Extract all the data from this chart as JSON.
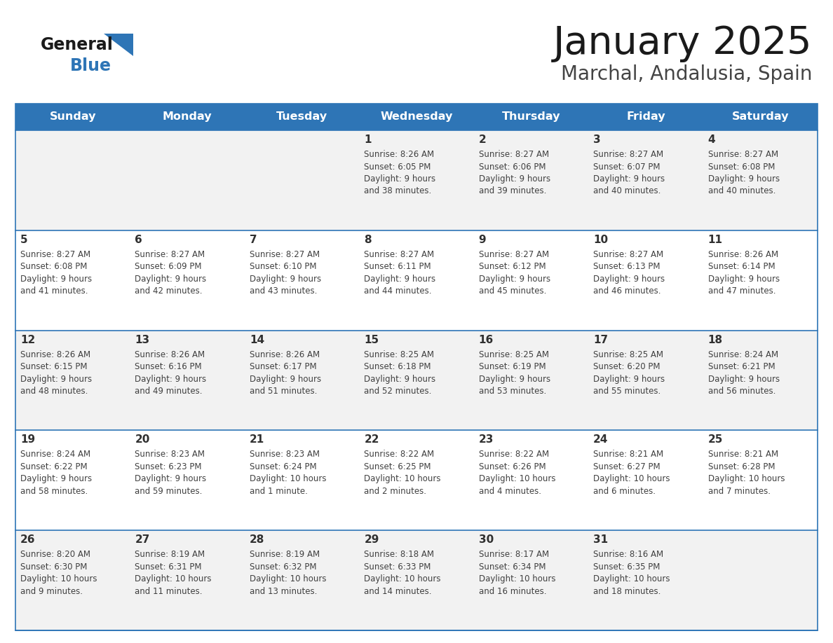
{
  "title": "January 2025",
  "subtitle": "Marchal, Andalusia, Spain",
  "header_color": "#2E75B6",
  "header_text_color": "#FFFFFF",
  "weekdays": [
    "Sunday",
    "Monday",
    "Tuesday",
    "Wednesday",
    "Thursday",
    "Friday",
    "Saturday"
  ],
  "row_colors": [
    "#F2F2F2",
    "#FFFFFF"
  ],
  "border_color": "#2E75B6",
  "text_color": "#404040",
  "day_number_color": "#303030",
  "logo_general_color": "#1a1a1a",
  "logo_blue_color": "#2E75B6",
  "logo_triangle_color": "#2E75B6",
  "calendar": [
    [
      {
        "day": null,
        "sunrise": null,
        "sunset": null,
        "daylight": null
      },
      {
        "day": null,
        "sunrise": null,
        "sunset": null,
        "daylight": null
      },
      {
        "day": null,
        "sunrise": null,
        "sunset": null,
        "daylight": null
      },
      {
        "day": 1,
        "sunrise": "8:26 AM",
        "sunset": "6:05 PM",
        "daylight": "9 hours\nand 38 minutes."
      },
      {
        "day": 2,
        "sunrise": "8:27 AM",
        "sunset": "6:06 PM",
        "daylight": "9 hours\nand 39 minutes."
      },
      {
        "day": 3,
        "sunrise": "8:27 AM",
        "sunset": "6:07 PM",
        "daylight": "9 hours\nand 40 minutes."
      },
      {
        "day": 4,
        "sunrise": "8:27 AM",
        "sunset": "6:08 PM",
        "daylight": "9 hours\nand 40 minutes."
      }
    ],
    [
      {
        "day": 5,
        "sunrise": "8:27 AM",
        "sunset": "6:08 PM",
        "daylight": "9 hours\nand 41 minutes."
      },
      {
        "day": 6,
        "sunrise": "8:27 AM",
        "sunset": "6:09 PM",
        "daylight": "9 hours\nand 42 minutes."
      },
      {
        "day": 7,
        "sunrise": "8:27 AM",
        "sunset": "6:10 PM",
        "daylight": "9 hours\nand 43 minutes."
      },
      {
        "day": 8,
        "sunrise": "8:27 AM",
        "sunset": "6:11 PM",
        "daylight": "9 hours\nand 44 minutes."
      },
      {
        "day": 9,
        "sunrise": "8:27 AM",
        "sunset": "6:12 PM",
        "daylight": "9 hours\nand 45 minutes."
      },
      {
        "day": 10,
        "sunrise": "8:27 AM",
        "sunset": "6:13 PM",
        "daylight": "9 hours\nand 46 minutes."
      },
      {
        "day": 11,
        "sunrise": "8:26 AM",
        "sunset": "6:14 PM",
        "daylight": "9 hours\nand 47 minutes."
      }
    ],
    [
      {
        "day": 12,
        "sunrise": "8:26 AM",
        "sunset": "6:15 PM",
        "daylight": "9 hours\nand 48 minutes."
      },
      {
        "day": 13,
        "sunrise": "8:26 AM",
        "sunset": "6:16 PM",
        "daylight": "9 hours\nand 49 minutes."
      },
      {
        "day": 14,
        "sunrise": "8:26 AM",
        "sunset": "6:17 PM",
        "daylight": "9 hours\nand 51 minutes."
      },
      {
        "day": 15,
        "sunrise": "8:25 AM",
        "sunset": "6:18 PM",
        "daylight": "9 hours\nand 52 minutes."
      },
      {
        "day": 16,
        "sunrise": "8:25 AM",
        "sunset": "6:19 PM",
        "daylight": "9 hours\nand 53 minutes."
      },
      {
        "day": 17,
        "sunrise": "8:25 AM",
        "sunset": "6:20 PM",
        "daylight": "9 hours\nand 55 minutes."
      },
      {
        "day": 18,
        "sunrise": "8:24 AM",
        "sunset": "6:21 PM",
        "daylight": "9 hours\nand 56 minutes."
      }
    ],
    [
      {
        "day": 19,
        "sunrise": "8:24 AM",
        "sunset": "6:22 PM",
        "daylight": "9 hours\nand 58 minutes."
      },
      {
        "day": 20,
        "sunrise": "8:23 AM",
        "sunset": "6:23 PM",
        "daylight": "9 hours\nand 59 minutes."
      },
      {
        "day": 21,
        "sunrise": "8:23 AM",
        "sunset": "6:24 PM",
        "daylight": "10 hours\nand 1 minute."
      },
      {
        "day": 22,
        "sunrise": "8:22 AM",
        "sunset": "6:25 PM",
        "daylight": "10 hours\nand 2 minutes."
      },
      {
        "day": 23,
        "sunrise": "8:22 AM",
        "sunset": "6:26 PM",
        "daylight": "10 hours\nand 4 minutes."
      },
      {
        "day": 24,
        "sunrise": "8:21 AM",
        "sunset": "6:27 PM",
        "daylight": "10 hours\nand 6 minutes."
      },
      {
        "day": 25,
        "sunrise": "8:21 AM",
        "sunset": "6:28 PM",
        "daylight": "10 hours\nand 7 minutes."
      }
    ],
    [
      {
        "day": 26,
        "sunrise": "8:20 AM",
        "sunset": "6:30 PM",
        "daylight": "10 hours\nand 9 minutes."
      },
      {
        "day": 27,
        "sunrise": "8:19 AM",
        "sunset": "6:31 PM",
        "daylight": "10 hours\nand 11 minutes."
      },
      {
        "day": 28,
        "sunrise": "8:19 AM",
        "sunset": "6:32 PM",
        "daylight": "10 hours\nand 13 minutes."
      },
      {
        "day": 29,
        "sunrise": "8:18 AM",
        "sunset": "6:33 PM",
        "daylight": "10 hours\nand 14 minutes."
      },
      {
        "day": 30,
        "sunrise": "8:17 AM",
        "sunset": "6:34 PM",
        "daylight": "10 hours\nand 16 minutes."
      },
      {
        "day": 31,
        "sunrise": "8:16 AM",
        "sunset": "6:35 PM",
        "daylight": "10 hours\nand 18 minutes."
      },
      {
        "day": null,
        "sunrise": null,
        "sunset": null,
        "daylight": null
      }
    ]
  ]
}
